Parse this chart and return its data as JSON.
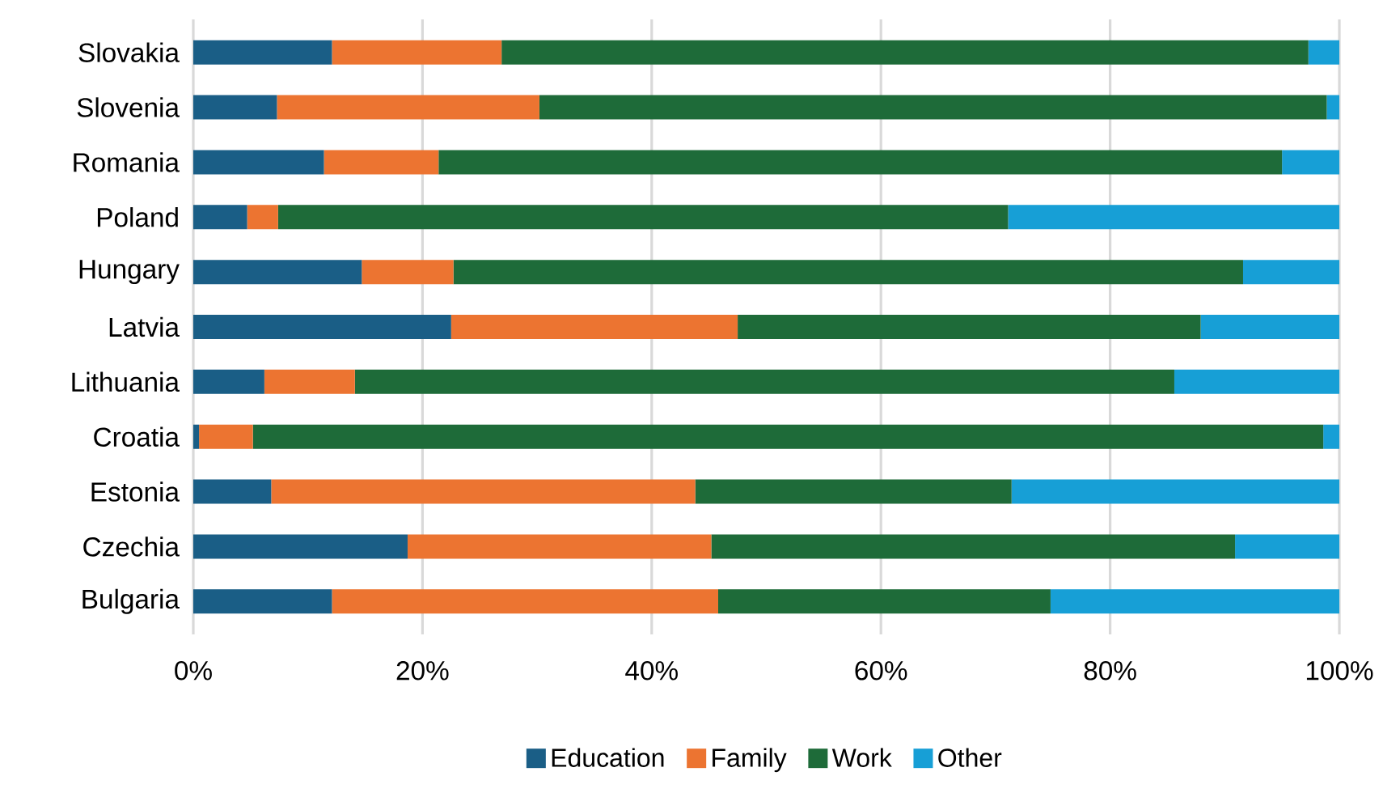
{
  "chart_data": {
    "type": "bar",
    "orientation": "horizontal",
    "stacked": true,
    "categories": [
      "Slovakia",
      "Slovenia",
      "Romania",
      "Poland",
      "Hungary",
      "Latvia",
      "Lithuania",
      "Croatia",
      "Estonia",
      "Czechia",
      "Bulgaria"
    ],
    "series": [
      {
        "name": "Education",
        "color": "#1a5e86",
        "values": [
          12.1,
          7.3,
          11.4,
          4.7,
          14.7,
          22.5,
          6.2,
          0.5,
          6.8,
          18.7,
          12.1
        ]
      },
      {
        "name": "Family",
        "color": "#ec7431",
        "values": [
          14.8,
          22.9,
          10.0,
          2.7,
          8.0,
          25.0,
          7.9,
          4.7,
          37.0,
          26.5,
          33.7
        ]
      },
      {
        "name": "Work",
        "color": "#1e6b39",
        "values": [
          70.4,
          68.7,
          73.6,
          63.7,
          68.9,
          40.4,
          71.5,
          93.4,
          27.6,
          45.7,
          29.0
        ]
      },
      {
        "name": "Other",
        "color": "#179fd6",
        "values": [
          2.7,
          1.1,
          5.0,
          28.9,
          8.4,
          12.1,
          14.4,
          1.4,
          28.6,
          9.1,
          25.2
        ]
      }
    ],
    "xlim": [
      0,
      100
    ],
    "xticks": [
      {
        "value": 0,
        "label": "0%"
      },
      {
        "value": 20,
        "label": "20%"
      },
      {
        "value": 40,
        "label": "40%"
      },
      {
        "value": 60,
        "label": "60%"
      },
      {
        "value": 80,
        "label": "80%"
      },
      {
        "value": 100,
        "label": "100%"
      }
    ],
    "grid": "x",
    "legend": "bottom"
  }
}
